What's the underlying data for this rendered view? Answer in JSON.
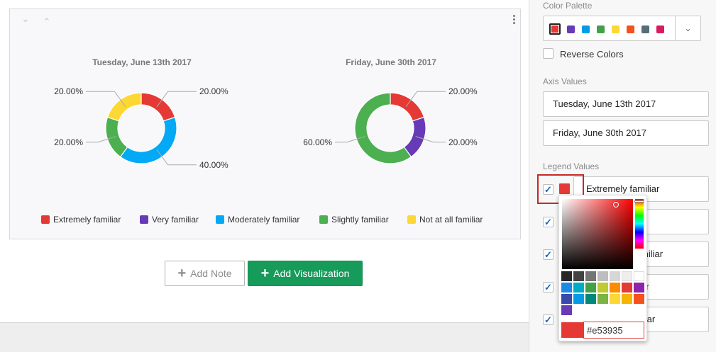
{
  "canvas": {
    "charts": [
      {
        "title": "Tuesday, June 13th 2017"
      },
      {
        "title": "Friday, June 30th 2017"
      }
    ],
    "add_note_label": "Add Note",
    "add_visualization_label": "Add Visualization"
  },
  "chart_data": {
    "type": "pie",
    "donut": true,
    "categories": [
      "Extremely familiar",
      "Very familiar",
      "Moderately familiar",
      "Slightly familiar",
      "Not at all familiar"
    ],
    "colors": [
      "#e53935",
      "#673ab7",
      "#03a9f4",
      "#4caf50",
      "#fdd835"
    ],
    "legend_position": "bottom",
    "charts": [
      {
        "title": "Tuesday, June 13th 2017",
        "values": [
          20,
          0,
          40,
          20,
          20
        ],
        "labels": [
          "20.00%",
          "",
          "40.00%",
          "20.00%",
          "20.00%"
        ]
      },
      {
        "title": "Friday, June 30th 2017",
        "values": [
          20,
          20,
          0,
          60,
          0
        ],
        "labels": [
          "20.00%",
          "20.00%",
          "",
          "60.00%",
          ""
        ]
      }
    ]
  },
  "panel": {
    "color_palette_label": "Color Palette",
    "palette_colors": [
      "#e53935",
      "#673ab7",
      "#039be5",
      "#43a047",
      "#fdd835",
      "#f4511e",
      "#546e7a",
      "#d81b60"
    ],
    "reverse_colors_label": "Reverse Colors",
    "reverse_colors_checked": false,
    "axis_values_label": "Axis Values",
    "axis_values": [
      "Tuesday, June 13th 2017",
      "Friday, June 30th 2017"
    ],
    "legend_values_label": "Legend Values",
    "legend_rows": [
      {
        "checked": true,
        "label": "Extremely familiar"
      },
      {
        "checked": true,
        "label": ""
      },
      {
        "checked": true,
        "label": "miliar"
      },
      {
        "checked": true,
        "label": "ar"
      },
      {
        "checked": true,
        "label": "iliar"
      }
    ]
  },
  "color_picker": {
    "hex_value": "#e53935",
    "current_color": "#e53935",
    "swatches": [
      [
        "#262626",
        "#424242",
        "#757575",
        "#bdbdbd",
        "#d6d6d6",
        "#eeeeee",
        "#ffffff"
      ],
      [
        "#1e88e5",
        "#00acc1",
        "#43a047",
        "#c0ca33",
        "#fb8c00",
        "#e53935",
        "#8e24aa"
      ],
      [
        "#3949ab",
        "#039be5",
        "#00897b",
        "#7cb342",
        "#fdd835",
        "#f4b400",
        "#f4511e"
      ],
      [
        "#673ab7"
      ]
    ]
  },
  "icons": {
    "collapse": "chevron-down-icon",
    "expand": "chevron-up-icon",
    "menu": "kebab-menu-icon",
    "add": "plus-icon",
    "dropdown": "chevron-down-icon",
    "check": "checkmark-icon"
  }
}
